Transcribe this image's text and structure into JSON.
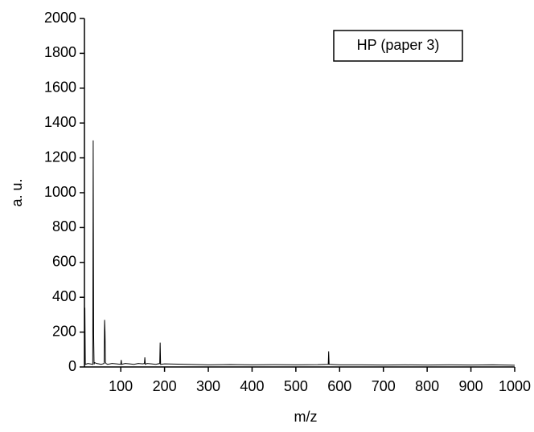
{
  "chart_data": {
    "type": "line",
    "x_label": "m/z",
    "y_label": "a. u.",
    "x": [
      17,
      18,
      19,
      25,
      30,
      36,
      37,
      38,
      39,
      40,
      45,
      50,
      55,
      62,
      63,
      64,
      65,
      66,
      70,
      80,
      90,
      100,
      101,
      102,
      110,
      120,
      130,
      140,
      150,
      154,
      155,
      156,
      160,
      170,
      180,
      189,
      190,
      191,
      200,
      250,
      300,
      350,
      400,
      450,
      500,
      550,
      574,
      575,
      576,
      600,
      650,
      700,
      750,
      800,
      850,
      900,
      950,
      1000
    ],
    "series": [
      {
        "name": "HP (paper 3)",
        "color": "#000000",
        "values": [
          20,
          340,
          15,
          20,
          18,
          15,
          1300,
          190,
          15,
          25,
          20,
          18,
          15,
          20,
          270,
          200,
          30,
          20,
          15,
          20,
          18,
          15,
          40,
          15,
          20,
          18,
          15,
          20,
          18,
          20,
          55,
          15,
          20,
          18,
          15,
          20,
          140,
          15,
          18,
          15,
          12,
          14,
          12,
          13,
          12,
          13,
          15,
          90,
          15,
          12,
          12,
          11,
          12,
          11,
          12,
          11,
          12,
          10
        ]
      }
    ],
    "xlim": [
      17,
      1000
    ],
    "ylim": [
      0,
      2000
    ],
    "xticks": [
      100,
      200,
      300,
      400,
      500,
      600,
      700,
      800,
      900,
      1000
    ],
    "yticks": [
      0,
      200,
      400,
      600,
      800,
      1000,
      1200,
      1400,
      1600,
      1800,
      2000
    ],
    "grid": false
  }
}
